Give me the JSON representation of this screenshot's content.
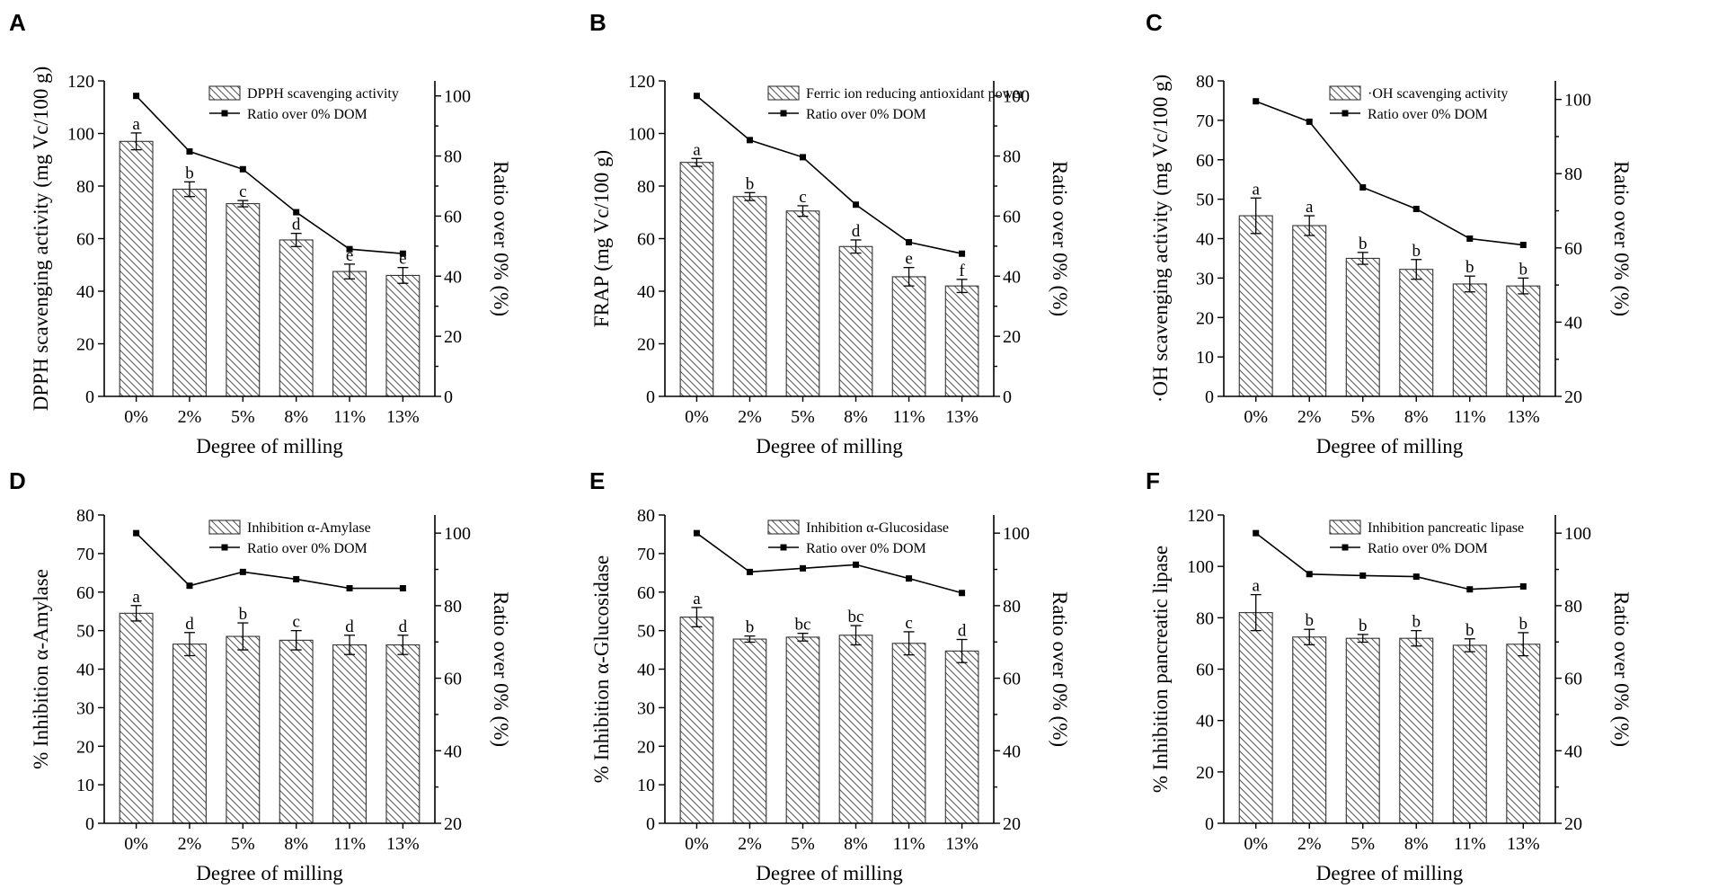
{
  "chart_data": [
    {
      "type": "bar",
      "panel": "A",
      "categories": [
        "0%",
        "2%",
        "5%",
        "8%",
        "11%",
        "13%"
      ],
      "xlabel": "Degree of milling",
      "ylabel": "DPPH scavenging activity (mg Vc/100 g)",
      "y2label": "Ratio over 0% (%)",
      "ylim": [
        0,
        120
      ],
      "yticks": [
        0,
        20,
        40,
        60,
        80,
        100,
        120
      ],
      "y2lim": [
        0,
        105
      ],
      "y2ticks": [
        0,
        20,
        40,
        60,
        80,
        100
      ],
      "legend_position": "top-right",
      "series": [
        {
          "name": "DPPH scavenging activity",
          "kind": "bar",
          "values": [
            97,
            78.8,
            73.3,
            59.5,
            47.5,
            46
          ],
          "errors": [
            3.2,
            2.8,
            1.2,
            2.5,
            2.8,
            3
          ],
          "letters": [
            "a",
            "b",
            "c",
            "d",
            "e",
            "e"
          ]
        },
        {
          "name": "Ratio over 0% DOM",
          "kind": "line",
          "axis": "y2",
          "values": [
            100,
            81.5,
            75.6,
            61.3,
            49,
            47.5
          ]
        }
      ]
    },
    {
      "type": "bar",
      "panel": "B",
      "categories": [
        "0%",
        "2%",
        "5%",
        "8%",
        "11%",
        "13%"
      ],
      "xlabel": "Degree of milling",
      "ylabel": "FRAP (mg Vc/100 g)",
      "y2label": "Ratio over 0% (%)",
      "ylim": [
        0,
        120
      ],
      "yticks": [
        0,
        20,
        40,
        60,
        80,
        100,
        120
      ],
      "y2lim": [
        0,
        105
      ],
      "y2ticks": [
        0,
        20,
        40,
        60,
        80,
        100
      ],
      "legend_position": "top-right",
      "series": [
        {
          "name": "Ferric ion reducing antioxidant power",
          "kind": "bar",
          "values": [
            89,
            76,
            70.5,
            57,
            45.5,
            42
          ],
          "errors": [
            1.5,
            1.5,
            2,
            2.5,
            3.5,
            2.5
          ],
          "letters": [
            "a",
            "b",
            "c",
            "d",
            "e",
            "f"
          ]
        },
        {
          "name": "Ratio over 0% DOM",
          "kind": "line",
          "axis": "y2",
          "values": [
            100,
            85.3,
            79.6,
            63.8,
            51.3,
            47.5
          ]
        }
      ]
    },
    {
      "type": "bar",
      "panel": "C",
      "categories": [
        "0%",
        "2%",
        "5%",
        "8%",
        "11%",
        "13%"
      ],
      "xlabel": "Degree of milling",
      "ylabel": "·OH scavenging activity (mg Vc/100 g)",
      "y2label": "Ratio over 0% (%)",
      "ylim": [
        0,
        80
      ],
      "yticks": [
        0,
        10,
        20,
        30,
        40,
        50,
        60,
        70,
        80
      ],
      "y2lim": [
        20,
        105
      ],
      "y2ticks": [
        20,
        40,
        60,
        80,
        100
      ],
      "legend_position": "top-right",
      "series": [
        {
          "name": "·OH scavenging activity",
          "kind": "bar",
          "values": [
            45.8,
            43.3,
            35,
            32.2,
            28.5,
            28
          ],
          "errors": [
            4.5,
            2.5,
            1.5,
            2.5,
            2,
            2
          ],
          "letters": [
            "a",
            "a",
            "b",
            "b",
            "b",
            "b"
          ]
        },
        {
          "name": "Ratio over 0% DOM",
          "kind": "line",
          "axis": "y2",
          "values": [
            99.5,
            94,
            76.3,
            70.5,
            62.5,
            60.8
          ]
        }
      ]
    },
    {
      "type": "bar",
      "panel": "D",
      "categories": [
        "0%",
        "2%",
        "5%",
        "8%",
        "11%",
        "13%"
      ],
      "xlabel": "Degree of milling",
      "ylabel": "% Inhibition α-Amylase",
      "y2label": "Ratio over 0% (%)",
      "ylim": [
        0,
        80
      ],
      "yticks": [
        0,
        10,
        20,
        30,
        40,
        50,
        60,
        70,
        80
      ],
      "y2lim": [
        20,
        105
      ],
      "y2ticks": [
        20,
        40,
        60,
        80,
        100
      ],
      "legend_position": "top-right",
      "series": [
        {
          "name": "Inhibition α-Amylase",
          "kind": "bar",
          "values": [
            54.5,
            46.5,
            48.5,
            47.5,
            46.3,
            46.3
          ],
          "errors": [
            2,
            3,
            3.5,
            2.5,
            2.5,
            2.5
          ],
          "letters": [
            "a",
            "d",
            "b",
            "c",
            "d",
            "d"
          ]
        },
        {
          "name": "Ratio over 0% DOM",
          "kind": "line",
          "axis": "y2",
          "values": [
            100,
            85.5,
            89.3,
            87.3,
            84.8,
            84.8
          ]
        }
      ]
    },
    {
      "type": "bar",
      "panel": "E",
      "categories": [
        "0%",
        "2%",
        "5%",
        "8%",
        "11%",
        "13%"
      ],
      "xlabel": "Degree of milling",
      "ylabel": "% Inhibition α-Glucosidase",
      "y2label": "Ratio over 0% (%)",
      "ylim": [
        0,
        80
      ],
      "yticks": [
        0,
        10,
        20,
        30,
        40,
        50,
        60,
        70,
        80
      ],
      "y2lim": [
        20,
        105
      ],
      "y2ticks": [
        20,
        40,
        60,
        80,
        100
      ],
      "legend_position": "top-right",
      "series": [
        {
          "name": "Inhibition α-Glucosidase",
          "kind": "bar",
          "values": [
            53.5,
            47.8,
            48.3,
            48.8,
            46.7,
            44.7
          ],
          "errors": [
            2.5,
            0.8,
            1,
            2.5,
            3,
            3
          ],
          "letters": [
            "a",
            "b",
            "bc",
            "bc",
            "c",
            "d"
          ]
        },
        {
          "name": "Ratio over 0% DOM",
          "kind": "line",
          "axis": "y2",
          "values": [
            100,
            89.3,
            90.3,
            91.3,
            87.5,
            83.5
          ]
        }
      ]
    },
    {
      "type": "bar",
      "panel": "F",
      "categories": [
        "0%",
        "2%",
        "5%",
        "8%",
        "11%",
        "13%"
      ],
      "xlabel": "Degree of milling",
      "ylabel": "% Inhibition pancreatic lipase",
      "y2label": "Ratio over 0% (%)",
      "ylim": [
        0,
        120
      ],
      "yticks": [
        0,
        20,
        40,
        60,
        80,
        100,
        120
      ],
      "y2lim": [
        20,
        105
      ],
      "y2ticks": [
        20,
        40,
        60,
        80,
        100
      ],
      "legend_position": "top-right",
      "series": [
        {
          "name": "Inhibition pancreatic lipase",
          "kind": "bar",
          "values": [
            82,
            72.5,
            72,
            72,
            69.3,
            69.7
          ],
          "errors": [
            7,
            3,
            1.5,
            3,
            2.5,
            4.5
          ],
          "letters": [
            "a",
            "b",
            "b",
            "b",
            "b",
            "b"
          ]
        },
        {
          "name": "Ratio over 0% DOM",
          "kind": "line",
          "axis": "y2",
          "values": [
            100,
            88.7,
            88.3,
            88,
            84.5,
            85.3
          ]
        }
      ]
    }
  ]
}
